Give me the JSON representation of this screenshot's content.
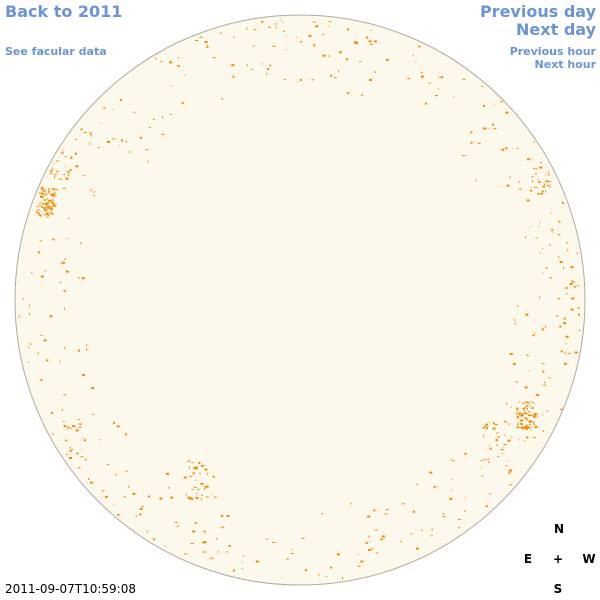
{
  "navigation": {
    "back": "Back to 2011",
    "facular": "See facular data",
    "previous_day": "Previous day",
    "next_day": "Next day",
    "previous_hour": "Previous hour",
    "next_hour": "Next hour"
  },
  "timestamp": "2011-09-07T10:59:08",
  "compass": {
    "north": "N",
    "east": "E",
    "center": "+",
    "west": "W",
    "south": "S"
  }
}
